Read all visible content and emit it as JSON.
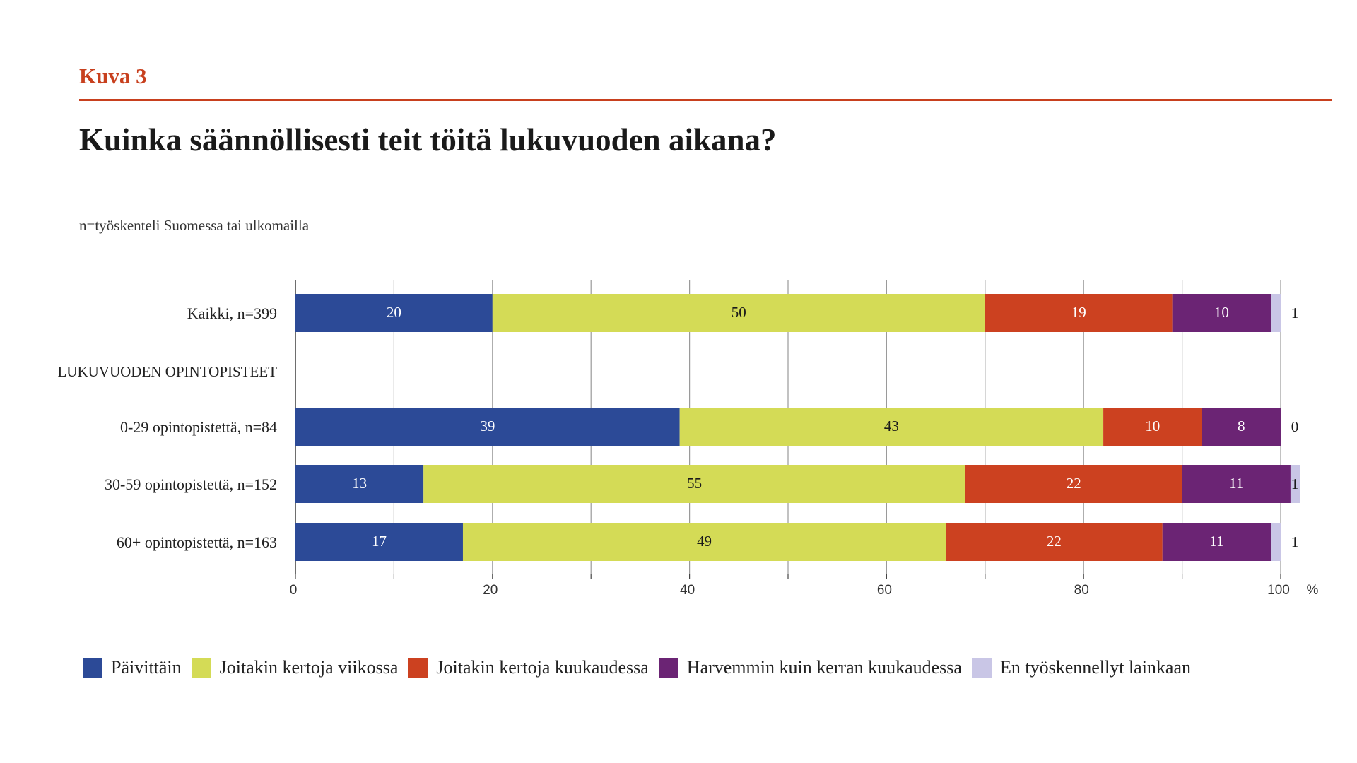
{
  "header": {
    "kicker": "Kuva 3",
    "title": "Kuinka säännöllisesti teit töitä lukuvuoden aikana?",
    "subtitle": "n=työskenteli Suomessa tai ulkomailla"
  },
  "chart_data": {
    "type": "bar",
    "orientation": "horizontal",
    "stacked": true,
    "xlim": [
      0,
      100
    ],
    "xticks": [
      0,
      20,
      40,
      60,
      80,
      100
    ],
    "xunit": "%",
    "grid": true,
    "legend_position": "bottom",
    "section_label": "LUKUVUODEN OPINTOPISTEET",
    "categories": [
      "Kaikki, n=399",
      "0-29 opintopistettä, n=84",
      "30-59 opintopistettä, n=152",
      "60+ opintopistettä, n=163"
    ],
    "series": [
      {
        "name": "Päivittäin",
        "color": "#2c4a97",
        "label_color": "#ffffff",
        "values": [
          20,
          39,
          13,
          17
        ]
      },
      {
        "name": "Joitakin kertoja viikossa",
        "color": "#d4db56",
        "label_color": "#1a1a1a",
        "values": [
          50,
          43,
          55,
          49
        ]
      },
      {
        "name": "Joitakin kertoja kuukaudessa",
        "color": "#cc4120",
        "label_color": "#ffffff",
        "values": [
          19,
          10,
          22,
          22
        ]
      },
      {
        "name": "Harvemmin kuin kerran kuukaudessa",
        "color": "#6b2474",
        "label_color": "#ffffff",
        "values": [
          10,
          8,
          11,
          11
        ]
      },
      {
        "name": "En työskennellyt lainkaan",
        "color": "#c9c6e6",
        "label_color": "#1a1a1a",
        "values": [
          1,
          0,
          1,
          1
        ]
      }
    ]
  }
}
